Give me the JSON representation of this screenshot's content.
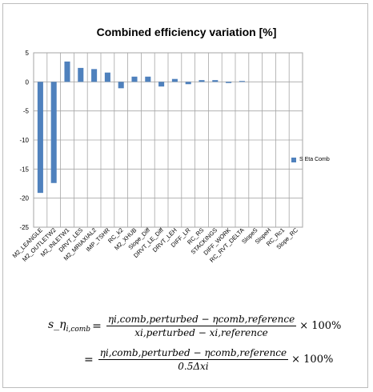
{
  "chart_data": {
    "type": "bar",
    "title": "Combined efficiency variation [%]",
    "xlabel": "",
    "ylabel": "",
    "ylim": [
      -25,
      5
    ],
    "yticks": [
      5,
      0,
      -5,
      -10,
      -15,
      -20,
      -25
    ],
    "grid": true,
    "legend_position": "right",
    "colors": {
      "bar": "#4f81bd",
      "grid": "#a6a6a6"
    },
    "categories": [
      "M2_LEANGLE",
      "M2_OUTLETW2",
      "M2_INLETW1",
      "DRVT_LES",
      "M2_MRIAXIAL2",
      "IMP_TSHR",
      "RC_k2",
      "M2_XHUB",
      "Slope_Diff",
      "DRVT_LE_Diff",
      "DRVT_LEH",
      "DIFF_LR",
      "RC_RS",
      "STACKINGS",
      "DIFF_WORK",
      "RC_RVT_DELTA",
      "SlopeS",
      "SlopeH",
      "RC_Rc1",
      "Slope_RC"
    ],
    "series": [
      {
        "name": "S Eta Comb",
        "values": [
          -19.1,
          -17.4,
          3.5,
          2.4,
          2.2,
          1.6,
          -1.1,
          0.9,
          0.9,
          -0.8,
          0.5,
          -0.4,
          0.3,
          0.3,
          -0.2,
          0.15,
          0.0,
          0.0,
          0.0,
          0.0
        ]
      }
    ]
  },
  "formula": {
    "lhs": "s_η",
    "lhs_sub": "i,comb",
    "eq": "=",
    "line1_num": "ηi,comb,perturbed − ηcomb,reference",
    "line1_den": "xi,perturbed − xi,reference",
    "line2_num": "ηi,comb,perturbed − ηcomb,reference",
    "line2_den": "0.5Δxi",
    "times": "× 100%"
  }
}
